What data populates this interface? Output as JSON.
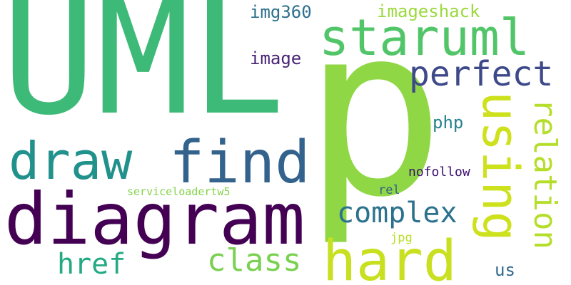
{
  "words": {
    "uml": {
      "text": "UML",
      "color": "#3dba78"
    },
    "p": {
      "text": "p",
      "color": "#8fd744"
    },
    "diagram": {
      "text": "diagram",
      "color": "#440154"
    },
    "staruml": {
      "text": "staruml",
      "color": "#52c569"
    },
    "find": {
      "text": "find",
      "color": "#33638d"
    },
    "draw": {
      "text": "draw",
      "color": "#21918c"
    },
    "hard": {
      "text": "hard",
      "color": "#c8e020"
    },
    "using": {
      "text": "using",
      "color": "#cde11d"
    },
    "relation": {
      "text": "relation",
      "color": "#b5de2b"
    },
    "perfect": {
      "text": "perfect",
      "color": "#3e4989"
    },
    "complex": {
      "text": "complex",
      "color": "#2c728e"
    },
    "class": {
      "text": "class",
      "color": "#7ad151"
    },
    "href": {
      "text": "href",
      "color": "#24aa83"
    },
    "img360": {
      "text": "img360",
      "color": "#2d708e"
    },
    "imageshack": {
      "text": "imageshack",
      "color": "#9bd93c"
    },
    "image": {
      "text": "image",
      "color": "#482475"
    },
    "php": {
      "text": "php",
      "color": "#26828e"
    },
    "nofollow": {
      "text": "nofollow",
      "color": "#3b0f70"
    },
    "serviceloader": {
      "text": "serviceloadertw5",
      "color": "#84d44b"
    },
    "rel": {
      "text": "rel",
      "color": "#355f8d"
    },
    "jpg": {
      "text": "jpg",
      "color": "#b8de29"
    },
    "us": {
      "text": "us",
      "color": "#31688e"
    }
  }
}
